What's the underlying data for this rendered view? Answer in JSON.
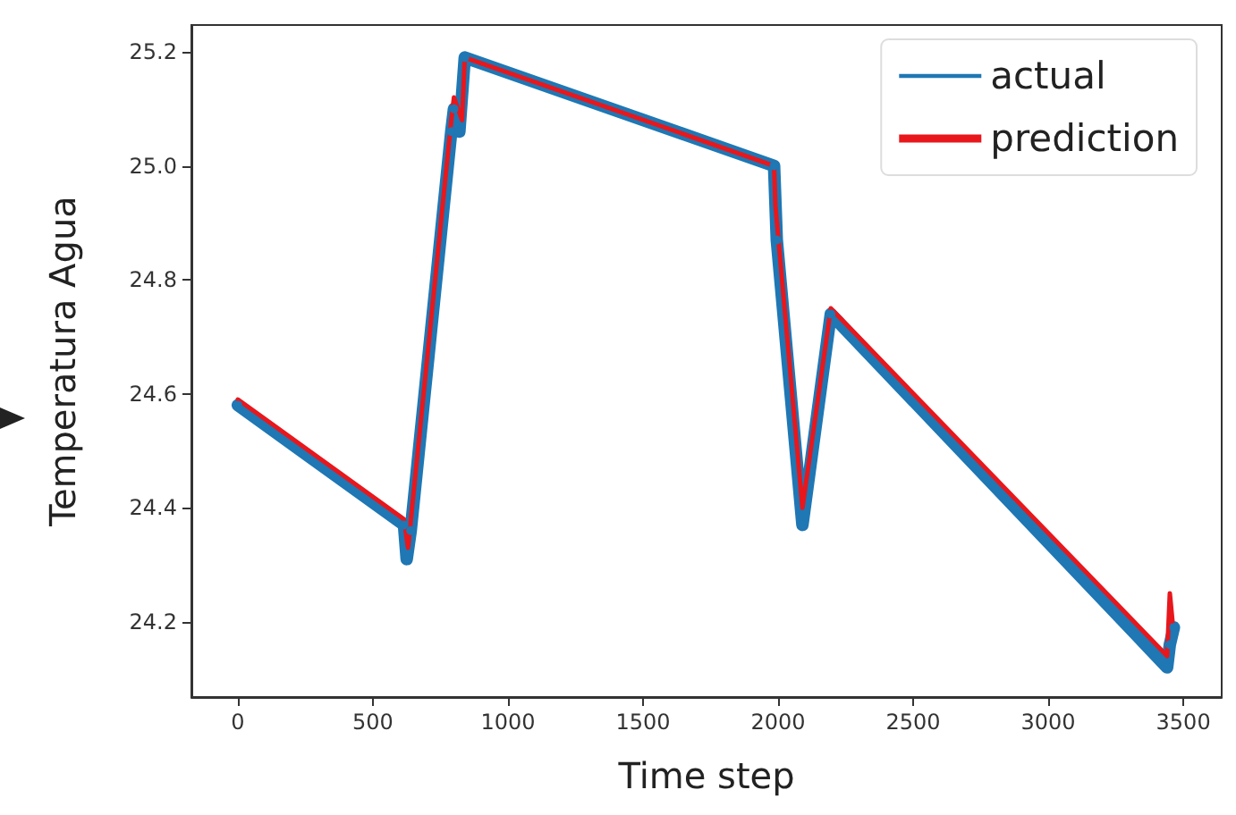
{
  "chart_data": {
    "type": "line",
    "xlabel": "Time step",
    "ylabel": "Temperatura Agua",
    "xlim": [
      -172,
      3642
    ],
    "xticks": [
      0,
      500,
      1000,
      1500,
      2000,
      2500,
      3000,
      3500
    ],
    "ylim": [
      24.068,
      25.247
    ],
    "yticks": [
      24.2,
      24.4,
      24.6,
      24.8,
      {
        "value": 25,
        "label": "25.0"
      },
      25.2
    ],
    "grid": false,
    "legend": "top right",
    "series": [
      {
        "name": "actual",
        "color": "#1f77b4",
        "marker": "circle",
        "x": [
          0,
          615,
          625,
          640,
          790,
          800,
          820,
          840,
          1985,
          1995,
          2090,
          2195,
          3440,
          3450,
          3465
        ],
        "values": [
          24.58,
          24.37,
          24.31,
          24.36,
          25.06,
          25.1,
          25.06,
          25.19,
          25.0,
          24.87,
          24.37,
          24.74,
          24.12,
          24.16,
          24.19
        ]
      },
      {
        "name": "prediction",
        "color": "#e8171c",
        "marker": "none",
        "x": [
          0,
          615,
          630,
          790,
          800,
          830,
          840,
          1985,
          1990,
          2090,
          2195,
          3440,
          3450,
          3460
        ],
        "values": [
          24.59,
          24.38,
          24.33,
          25.08,
          25.12,
          25.08,
          25.19,
          25.0,
          24.93,
          24.4,
          24.75,
          24.14,
          24.25,
          24.2
        ]
      }
    ]
  }
}
